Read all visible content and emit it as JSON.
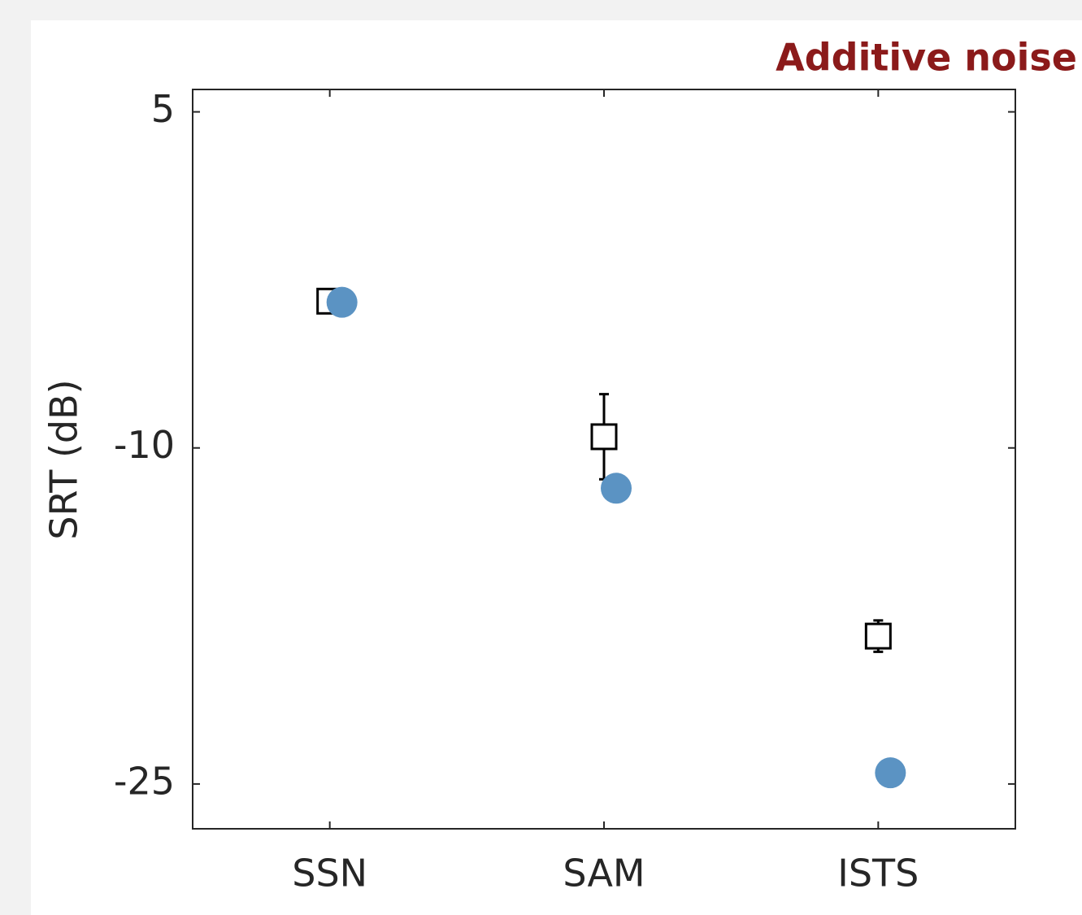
{
  "chart_data": {
    "type": "errorbar-scatter",
    "title": "Additive noise",
    "ylabel": "SRT (dB)",
    "categories": [
      "SSN",
      "SAM",
      "ISTS"
    ],
    "series": [
      {
        "marker": "square",
        "color": "#000000",
        "values": [
          -3.45,
          -9.5,
          -18.4
        ],
        "errors": [
          0.2,
          1.9,
          0.7
        ]
      },
      {
        "marker": "circle",
        "color": "#5b93c3",
        "values": [
          -3.5,
          -11.8,
          -24.5
        ]
      }
    ],
    "ylim": [
      -27,
      6
    ],
    "yticks": [
      5,
      -10,
      -25
    ],
    "grid": false
  }
}
